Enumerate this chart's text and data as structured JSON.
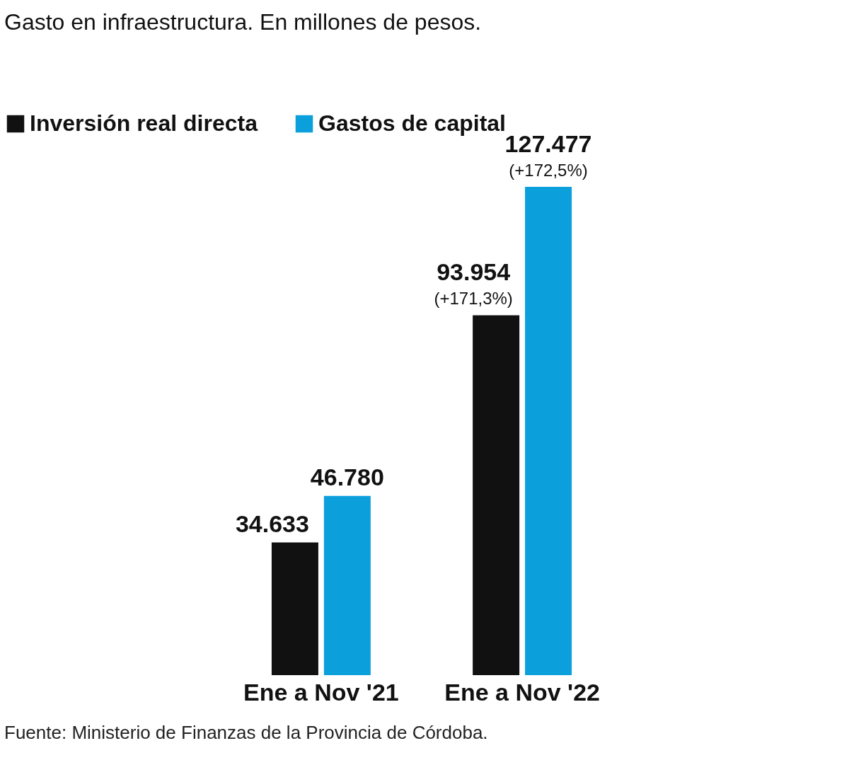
{
  "chart_data": {
    "type": "bar",
    "title": "Gasto en infraestructura. En millones de pesos.",
    "categories": [
      "Ene a Nov '21",
      "Ene a Nov '22"
    ],
    "series": [
      {
        "name": "Inversión real directa",
        "color": "#111111",
        "values": [
          34633,
          93954
        ],
        "value_labels": [
          "34.633",
          "93.954"
        ]
      },
      {
        "name": "Gastos de capital",
        "color": "#0b9fdb",
        "values": [
          46780,
          127477
        ],
        "value_labels": [
          "46.780",
          "127.477"
        ]
      }
    ],
    "annotations": [
      {
        "text": "(+171,3%)",
        "x": "Ene a Nov '22",
        "y": 93954
      },
      {
        "text": "(+172,5%)",
        "x": "Ene a Nov '22",
        "y": 127477
      },
      "Fuente: Ministerio de Finanzas de la Provincia de Córdoba."
    ],
    "legend": "top left",
    "grid": false
  }
}
